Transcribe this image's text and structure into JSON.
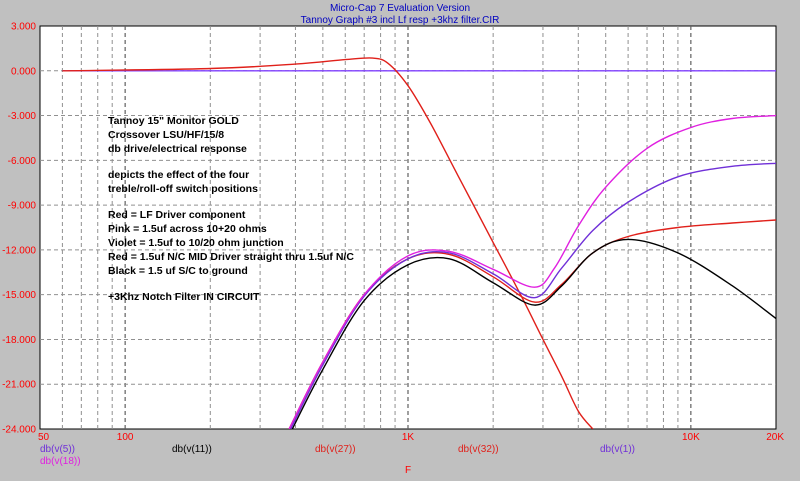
{
  "window": {
    "title": "Micro-Cap 7 Evaluation Version",
    "subtitle": "Tannoy Graph #3 incl Lf resp +3khz filter.CIR"
  },
  "colors": {
    "background": "#c0c0c0",
    "plot_bg": "#ffffff",
    "title": "#0000c0",
    "axis_text": "#000000",
    "tick_text": "#ff0000",
    "red": "#e0201a",
    "pink": "#e020e0",
    "violet": "#7030d8",
    "black": "#000000",
    "reference": "#8040ff"
  },
  "annotations": [
    "Tannoy 15\" Monitor GOLD",
    "Crossover LSU/HF/15/8",
    "db drive/electrical response",
    "depicts the effect of the four",
    "treble/roll-off switch positions",
    "Red  =  LF Driver component",
    "Pink =  1.5uf across 10+20 ohms",
    "Violet = 1.5uf to 10/20 ohm junction",
    "Red    = 1.5uf N/C MID Driver straight thru 1.5uf N/C",
    "Black =  1.5 uf S/C to ground",
    "+3Khz Notch Filter  IN CIRCUIT"
  ],
  "chart_data": {
    "type": "line",
    "xscale": "log",
    "xlim": [
      50,
      20000
    ],
    "ylim": [
      -24,
      3
    ],
    "xlabel": "F",
    "ylabel": "",
    "grid": true,
    "x_ticks": [
      {
        "value": 50,
        "label": "50"
      },
      {
        "value": 100,
        "label": "100"
      },
      {
        "value": 1000,
        "label": "1K"
      },
      {
        "value": 10000,
        "label": "10K"
      },
      {
        "value": 20000,
        "label": "20K"
      }
    ],
    "y_ticks": [
      {
        "value": 3,
        "label": "3.000"
      },
      {
        "value": 0,
        "label": "0.000"
      },
      {
        "value": -3,
        "label": "-3.000"
      },
      {
        "value": -6,
        "label": "-6.000"
      },
      {
        "value": -9,
        "label": "-9.000"
      },
      {
        "value": -12,
        "label": "-12.000"
      },
      {
        "value": -15,
        "label": "-15.000"
      },
      {
        "value": -18,
        "label": "-18.000"
      },
      {
        "value": -21,
        "label": "-21.000"
      },
      {
        "value": -24,
        "label": "-24.000"
      }
    ],
    "legend_labels": [
      {
        "text": "db(v(5))",
        "color": "#7030d8"
      },
      {
        "text": "db(v(18))",
        "color": "#e020e0"
      },
      {
        "text": "db(v(11))",
        "color": "#000000"
      },
      {
        "text": "db(v(27))",
        "color": "#e0201a"
      },
      {
        "text": "db(v(32))",
        "color": "#e0201a"
      },
      {
        "text": "db(v(1))",
        "color": "#7030d8"
      }
    ],
    "series": [
      {
        "name": "db(v(1))",
        "color": "#8040ff",
        "x": [
          60,
          20000
        ],
        "y": [
          0,
          0
        ]
      },
      {
        "name": "db(v(27))",
        "color": "#e0201a",
        "x": [
          60,
          200,
          400,
          600,
          750,
          850,
          1000,
          1200,
          1500,
          2000,
          2500,
          3000,
          3500,
          4000,
          4500
        ],
        "y": [
          0,
          0.15,
          0.45,
          0.75,
          0.85,
          0.5,
          -1.0,
          -3.5,
          -7.0,
          -11.5,
          -15.0,
          -18.0,
          -20.5,
          -22.8,
          -24.0
        ]
      },
      {
        "name": "db(v(32))",
        "color": "#e0201a",
        "x": [
          380,
          500,
          700,
          1000,
          1400,
          2000,
          2800,
          3500,
          4500,
          6000,
          9000,
          14000,
          20000
        ],
        "y": [
          -24.0,
          -19.5,
          -15.0,
          -12.6,
          -12.3,
          -13.8,
          -15.5,
          -14.3,
          -12.2,
          -11.1,
          -10.5,
          -10.2,
          -10.0
        ]
      },
      {
        "name": "db(v(11))",
        "color": "#000000",
        "x": [
          390,
          500,
          700,
          1000,
          1400,
          2000,
          2800,
          3500,
          4500,
          6000,
          9000,
          14000,
          20000
        ],
        "y": [
          -24.0,
          -20.0,
          -15.4,
          -13.0,
          -12.6,
          -14.2,
          -15.7,
          -14.4,
          -12.2,
          -11.3,
          -12.2,
          -14.4,
          -16.6
        ]
      },
      {
        "name": "db(v(5))",
        "color": "#7030d8",
        "x": [
          385,
          500,
          700,
          1000,
          1400,
          2000,
          2800,
          3500,
          4500,
          6000,
          9000,
          14000,
          20000
        ],
        "y": [
          -24.0,
          -19.7,
          -15.1,
          -12.6,
          -12.2,
          -13.6,
          -15.2,
          -13.2,
          -10.7,
          -8.8,
          -7.1,
          -6.4,
          -6.2
        ]
      },
      {
        "name": "db(v(18))",
        "color": "#e020e0",
        "x": [
          380,
          500,
          700,
          1000,
          1400,
          2000,
          2800,
          3300,
          4000,
          5000,
          7000,
          10000,
          14000,
          20000
        ],
        "y": [
          -24.0,
          -19.5,
          -15.0,
          -12.4,
          -12.1,
          -13.3,
          -14.5,
          -13.2,
          -10.4,
          -7.8,
          -5.2,
          -3.8,
          -3.2,
          -3.0
        ]
      }
    ]
  }
}
